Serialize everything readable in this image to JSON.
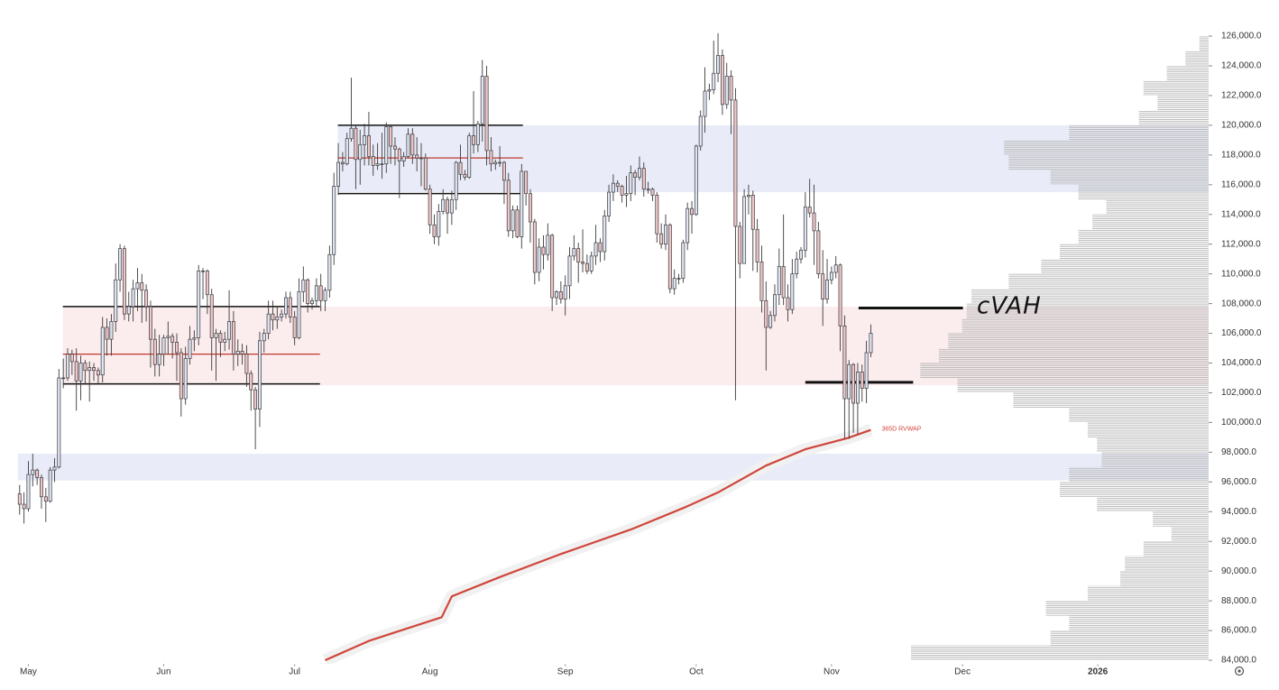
{
  "chart_data": {
    "type": "candlestick",
    "up_color": "#dfe4f3",
    "down_color": "#efc5c9",
    "wick_color": "#3a3a3a",
    "open": [
      95200,
      94500,
      94200,
      96500,
      96800,
      96300,
      95000,
      94700,
      96800,
      97000,
      103000,
      103000,
      104600,
      104100,
      102800,
      104000,
      103500,
      103700,
      103500,
      103200,
      106400,
      105600,
      106800,
      109600,
      111700,
      107300,
      107800,
      109000,
      109400,
      108900,
      107800,
      105600,
      103900,
      104600,
      105700,
      105800,
      105400,
      104700,
      101600,
      104300,
      105600,
      105700,
      110200,
      110200,
      108600,
      105700,
      106000,
      105400,
      105600,
      106800,
      104600,
      104800,
      104600,
      103300,
      102200,
      100900,
      105500,
      106000,
      107300,
      106900,
      107100,
      107300,
      108400,
      107100,
      105700,
      108800,
      109600,
      108000,
      108200,
      109200,
      108200,
      108900,
      111300,
      115900,
      117500,
      117400,
      119100,
      119800,
      117700,
      118700,
      119300,
      117900,
      117300,
      117400,
      117400,
      119900,
      118600,
      118400,
      117600,
      117900,
      119400,
      118000,
      117800,
      117800,
      115700,
      113300,
      112500,
      114200,
      115000,
      114100,
      115000,
      117500,
      116700,
      116500,
      119300,
      118700,
      120100,
      123300,
      118300,
      117400,
      117500,
      117500,
      116300,
      112900,
      114300,
      112500,
      116900,
      115400,
      113500,
      110100,
      111800,
      111300,
      112600,
      108400,
      108800,
      108300,
      109200,
      111200,
      111700,
      110800,
      110700,
      110200,
      111200,
      112100,
      111500,
      113900,
      115500,
      116100,
      115900,
      115300,
      115400,
      116800,
      116500,
      117100,
      115700,
      115700,
      115300,
      112700,
      112000,
      113300,
      109000,
      109700,
      109700,
      112100,
      114400,
      114000,
      118600,
      120600,
      122300,
      122400,
      123500,
      124700,
      121400,
      123300,
      121700,
      113200,
      110700,
      115200,
      115300,
      113000,
      110800,
      108200,
      106400,
      107200,
      108600,
      110500,
      108400,
      107600,
      110000,
      111000,
      111600,
      114500,
      114100,
      112900,
      110000,
      108300,
      109600,
      110100,
      110600,
      106500,
      101600,
      103900,
      101300,
      103400,
      102300,
      104700
    ],
    "high": [
      95800,
      95300,
      97400,
      97900,
      96900,
      96500,
      95600,
      97000,
      97600,
      103600,
      104300,
      105000,
      104900,
      105000,
      104500,
      104200,
      104100,
      104000,
      103700,
      107100,
      107000,
      107300,
      110700,
      112000,
      111900,
      108800,
      109600,
      110400,
      110000,
      109300,
      108200,
      106300,
      105900,
      105900,
      106800,
      106000,
      106000,
      105000,
      105100,
      106500,
      106200,
      110600,
      110400,
      110300,
      109000,
      106300,
      106200,
      106100,
      108900,
      107500,
      105600,
      105300,
      105200,
      103500,
      102400,
      106100,
      106300,
      108200,
      108200,
      107800,
      107600,
      108800,
      108800,
      107500,
      109700,
      110500,
      109700,
      108400,
      109700,
      110000,
      109100,
      111900,
      116800,
      118800,
      118200,
      119500,
      123200,
      120000,
      119700,
      120100,
      120900,
      118700,
      118800,
      119500,
      120200,
      120000,
      119200,
      118500,
      118200,
      119800,
      119800,
      119200,
      118800,
      118100,
      116000,
      114000,
      114700,
      115700,
      115200,
      115600,
      117600,
      118700,
      117000,
      119500,
      122300,
      120300,
      124400,
      124000,
      119200,
      117700,
      118600,
      117600,
      116800,
      114600,
      114600,
      117400,
      116900,
      115700,
      113700,
      112400,
      112600,
      113400,
      112700,
      108900,
      109500,
      109900,
      111800,
      112600,
      112100,
      113000,
      111300,
      111500,
      113300,
      112400,
      114300,
      116000,
      116700,
      116300,
      116000,
      116600,
      117300,
      117000,
      117900,
      117500,
      116200,
      115800,
      115500,
      113400,
      114000,
      113400,
      110300,
      110000,
      112300,
      114800,
      114900,
      118700,
      121000,
      123900,
      122800,
      125700,
      126200,
      125100,
      124200,
      123700,
      122500,
      113500,
      115700,
      116000,
      115600,
      113700,
      111900,
      109500,
      107500,
      109300,
      111700,
      114000,
      109300,
      111000,
      111500,
      111800,
      115500,
      116400,
      116000,
      113500,
      111600,
      111000,
      110500,
      111200,
      110700,
      107200,
      104200,
      104000,
      104000,
      103900,
      105500,
      106600
    ],
    "low": [
      93800,
      93200,
      94000,
      95700,
      95800,
      94200,
      93300,
      94600,
      96000,
      96900,
      102300,
      102800,
      103200,
      100800,
      101500,
      102600,
      101400,
      102800,
      102600,
      102700,
      104500,
      104500,
      106100,
      108800,
      106900,
      106800,
      106800,
      107500,
      106700,
      106800,
      103700,
      103100,
      103100,
      103800,
      104600,
      104300,
      102800,
      100400,
      101200,
      103900,
      104800,
      105200,
      108300,
      107300,
      103500,
      102800,
      104400,
      104800,
      104900,
      103500,
      103800,
      103900,
      102400,
      100800,
      98200,
      99700,
      104700,
      105600,
      106200,
      106300,
      106800,
      107000,
      106700,
      105200,
      105600,
      108100,
      107400,
      107600,
      107800,
      107500,
      107500,
      108400,
      110600,
      115300,
      116900,
      117300,
      118900,
      115700,
      116000,
      117300,
      117300,
      116600,
      117000,
      116400,
      116800,
      117400,
      117300,
      115100,
      117200,
      117800,
      117400,
      116900,
      115900,
      115600,
      112700,
      112000,
      111900,
      114000,
      112700,
      113300,
      114300,
      116300,
      116300,
      116400,
      118100,
      118200,
      118900,
      117300,
      116900,
      117000,
      117200,
      114700,
      112500,
      112400,
      112400,
      111700,
      114600,
      112100,
      109300,
      109500,
      110300,
      110900,
      107500,
      107900,
      108000,
      107200,
      108300,
      110900,
      109400,
      110100,
      110000,
      110000,
      110600,
      110800,
      110900,
      113500,
      114900,
      115500,
      114800,
      114500,
      114900,
      115300,
      116300,
      115200,
      115400,
      114900,
      112100,
      111700,
      111600,
      108700,
      108600,
      109300,
      109400,
      111600,
      112700,
      113900,
      118300,
      119500,
      121700,
      122100,
      122900,
      120700,
      121100,
      119400,
      101500,
      109700,
      110700,
      114000,
      110200,
      110100,
      107400,
      103500,
      106300,
      106800,
      107900,
      107900,
      106800,
      107300,
      109700,
      110700,
      111100,
      113800,
      110600,
      109700,
      106500,
      108000,
      109300,
      109700,
      104800,
      98900,
      98900,
      99300,
      99200,
      101400,
      101300,
      104400
    ],
    "close": [
      94500,
      94200,
      96500,
      96800,
      96300,
      95000,
      94700,
      96800,
      97000,
      103000,
      103000,
      104600,
      104100,
      102800,
      104000,
      103500,
      103700,
      103500,
      103200,
      106400,
      105600,
      106800,
      109600,
      111700,
      107300,
      107800,
      109000,
      109400,
      108900,
      107800,
      105600,
      103900,
      104600,
      105700,
      105800,
      105400,
      104700,
      101600,
      104300,
      105600,
      105700,
      110200,
      110200,
      108600,
      105700,
      106000,
      105400,
      105600,
      106800,
      104600,
      104800,
      104600,
      103300,
      102200,
      100900,
      105500,
      106000,
      107300,
      106900,
      107100,
      107300,
      108400,
      107100,
      105700,
      108800,
      109600,
      108000,
      108200,
      109200,
      108200,
      108900,
      111300,
      115900,
      117500,
      117400,
      119100,
      119800,
      117700,
      118700,
      119300,
      117900,
      117300,
      117400,
      117400,
      119900,
      118600,
      118400,
      117600,
      117900,
      119400,
      118000,
      117800,
      117800,
      115700,
      113300,
      112500,
      114200,
      115000,
      114100,
      115000,
      117500,
      116700,
      116500,
      119300,
      118700,
      120100,
      123300,
      118300,
      117400,
      117500,
      117500,
      116300,
      112900,
      114300,
      112500,
      116900,
      115400,
      113500,
      110100,
      111800,
      111300,
      112600,
      108400,
      108800,
      108300,
      109200,
      111200,
      111700,
      110800,
      110700,
      110200,
      111200,
      112100,
      111500,
      113900,
      115500,
      116100,
      115900,
      115300,
      115400,
      116800,
      116500,
      117100,
      115700,
      115700,
      115300,
      112700,
      112000,
      113300,
      109000,
      109700,
      109700,
      112100,
      114400,
      114000,
      118600,
      120600,
      122300,
      122400,
      123500,
      124700,
      121400,
      123300,
      121700,
      113200,
      110700,
      115200,
      115300,
      113000,
      110800,
      108200,
      106400,
      107200,
      108600,
      110500,
      108400,
      107600,
      110000,
      111000,
      111600,
      114500,
      114100,
      112900,
      110000,
      108300,
      109600,
      110100,
      110600,
      106500,
      101600,
      103900,
      101300,
      103400,
      102300,
      104700,
      106000
    ],
    "xlim": [
      -4.5,
      272.4
    ],
    "xticks": [
      {
        "value": 2,
        "label": "May"
      },
      {
        "value": 33,
        "label": "Jun"
      },
      {
        "value": 63,
        "label": "Jul"
      },
      {
        "value": 94,
        "label": "Aug"
      },
      {
        "value": 125,
        "label": "Sep"
      },
      {
        "value": 155,
        "label": "Oct"
      },
      {
        "value": 186,
        "label": "Nov"
      },
      {
        "value": 216,
        "label": "Dec"
      },
      {
        "value": 247,
        "label": "2026",
        "bold": true
      }
    ],
    "ylim": [
      83760,
      128430
    ],
    "yticks": [
      {
        "value": 84000,
        "label": "84,000.0"
      },
      {
        "value": 86000,
        "label": "86,000.0"
      },
      {
        "value": 88000,
        "label": "88,000.0"
      },
      {
        "value": 90000,
        "label": "90,000.0"
      },
      {
        "value": 92000,
        "label": "92,000.0"
      },
      {
        "value": 94000,
        "label": "94,000.0"
      },
      {
        "value": 96000,
        "label": "96,000.0"
      },
      {
        "value": 98000,
        "label": "98,000.0"
      },
      {
        "value": 100000,
        "label": "100,000.0"
      },
      {
        "value": 102000,
        "label": "102,000.0"
      },
      {
        "value": 104000,
        "label": "104,000.0"
      },
      {
        "value": 106000,
        "label": "106,000.0"
      },
      {
        "value": 108000,
        "label": "108,000.0"
      },
      {
        "value": 110000,
        "label": "110,000.0"
      },
      {
        "value": 112000,
        "label": "112,000.0"
      },
      {
        "value": 114000,
        "label": "114,000.0"
      },
      {
        "value": 116000,
        "label": "116,000.0"
      },
      {
        "value": 118000,
        "label": "118,000.0"
      },
      {
        "value": 120000,
        "label": "120,000.0"
      },
      {
        "value": 122000,
        "label": "122,000.0"
      },
      {
        "value": 124000,
        "label": "124,000.0"
      },
      {
        "value": 126000,
        "label": "126,000.0"
      }
    ],
    "zones": [
      {
        "low": 115500,
        "high": 120000,
        "start": 72.9,
        "color": "#e9ecf8"
      },
      {
        "low": 102500,
        "high": 107800,
        "start": 9.9,
        "color": "#fbecee"
      },
      {
        "low": 96100,
        "high": 97900,
        "start": -0.4,
        "color": "#e9ecf8"
      }
    ],
    "levels": [
      {
        "value": 107800,
        "start": 9.9,
        "end": 68.8,
        "color": "#111111",
        "width": 1.5
      },
      {
        "value": 102600,
        "start": 9.9,
        "end": 68.8,
        "color": "#111111",
        "width": 1.5
      },
      {
        "value": 104600,
        "start": 9.9,
        "end": 68.8,
        "color": "#c0392b",
        "width": 1.2
      },
      {
        "value": 120000,
        "start": 72.9,
        "end": 115.3,
        "color": "#111111",
        "width": 1.5
      },
      {
        "value": 115400,
        "start": 72.9,
        "end": 115.3,
        "color": "#111111",
        "width": 1.5
      },
      {
        "value": 117800,
        "start": 72.9,
        "end": 115.3,
        "color": "#c0392b",
        "width": 1.2
      },
      {
        "value": 107700,
        "start": 192.2,
        "end": 216.1,
        "color": "#111111",
        "width": 3
      },
      {
        "value": 102700,
        "start": 180,
        "end": 204.7,
        "color": "#111111",
        "width": 3
      }
    ],
    "annotation": "cVAH",
    "rvwap": {
      "name": "365D RVWAP",
      "color": "#d0463b",
      "x": [
        70,
        80,
        96.7,
        99,
        110,
        123.5,
        140,
        152.5,
        160,
        171,
        180,
        189.7,
        195
      ],
      "values": [
        84000,
        85300,
        86900,
        88300,
        89600,
        91100,
        92800,
        94300,
        95300,
        97100,
        98200,
        98950,
        99500
      ]
    },
    "volume_profile": {
      "color": "#bdbdbd",
      "step": 1000,
      "prices": [
        84500,
        85500,
        86500,
        87500,
        88500,
        89500,
        90500,
        91500,
        92500,
        93500,
        94500,
        95500,
        96500,
        97500,
        98500,
        99500,
        100500,
        101500,
        102500,
        103500,
        104500,
        105500,
        106500,
        107500,
        108500,
        109500,
        110500,
        111500,
        112500,
        113500,
        114500,
        115500,
        116500,
        117500,
        118500,
        119500,
        120500,
        121500,
        122500,
        123500,
        124500,
        125500
      ],
      "values": [
        320,
        170,
        150,
        175,
        130,
        95,
        90,
        70,
        40,
        60,
        120,
        160,
        150,
        115,
        120,
        130,
        150,
        210,
        270,
        310,
        290,
        280,
        265,
        260,
        255,
        215,
        180,
        160,
        140,
        125,
        110,
        140,
        170,
        215,
        220,
        150,
        75,
        55,
        70,
        45,
        25,
        10
      ]
    }
  }
}
